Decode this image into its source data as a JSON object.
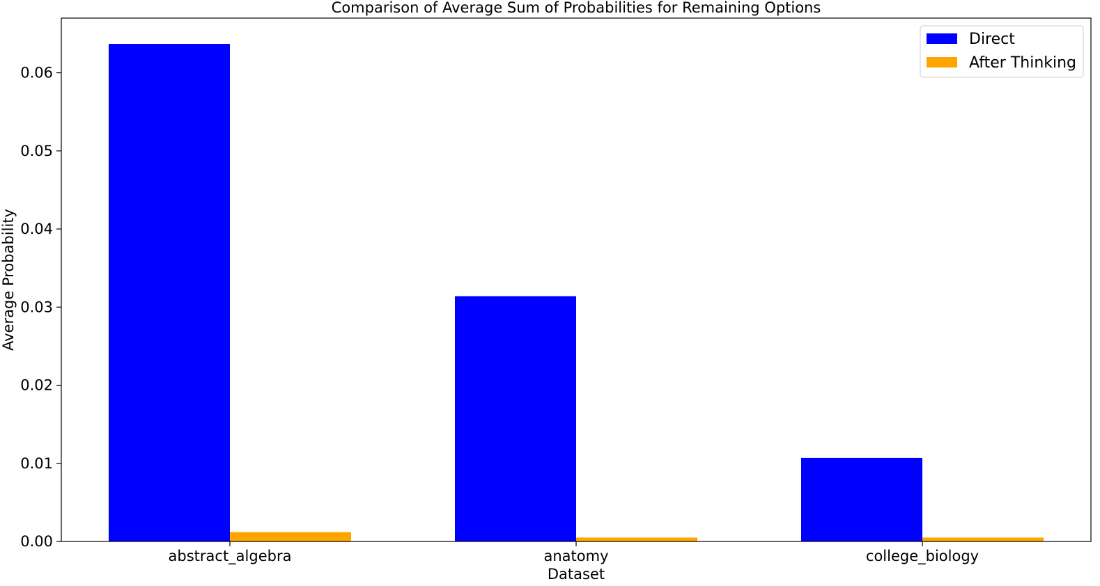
{
  "chart_data": {
    "type": "bar",
    "title": "Comparison of Average Sum of Probabilities for Remaining Options",
    "xlabel": "Dataset",
    "ylabel": "Average Probability",
    "categories": [
      "abstract_algebra",
      "anatomy",
      "college_biology"
    ],
    "series": [
      {
        "name": "Direct",
        "color": "#0000ff",
        "values": [
          0.0637,
          0.0314,
          0.0107
        ]
      },
      {
        "name": "After Thinking",
        "color": "#ffa500",
        "values": [
          0.0012,
          0.0005,
          0.0005
        ]
      }
    ],
    "ylim": [
      0,
      0.067
    ],
    "yticks": [
      "0.00",
      "0.01",
      "0.02",
      "0.03",
      "0.04",
      "0.05",
      "0.06"
    ],
    "legend_position": "top-right",
    "grid": false
  }
}
